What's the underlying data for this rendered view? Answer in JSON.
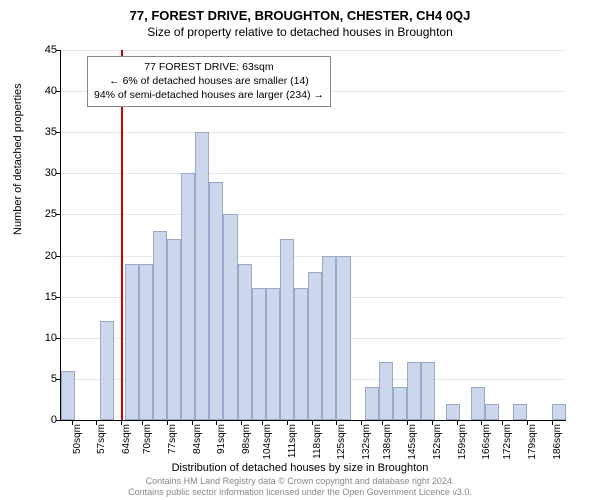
{
  "title_main": "77, FOREST DRIVE, BROUGHTON, CHESTER, CH4 0QJ",
  "title_sub": "Size of property relative to detached houses in Broughton",
  "y_axis_label": "Number of detached properties",
  "x_axis_label": "Distribution of detached houses by size in Broughton",
  "footer_line1": "Contains HM Land Registry data © Crown copyright and database right 2024.",
  "footer_line2": "Contains public sector information licensed under the Open Government Licence v3.0.",
  "chart": {
    "type": "histogram",
    "ylim": [
      0,
      45
    ],
    "ytick_step": 5,
    "bar_fill": "#cdd7ec",
    "bar_border": "#9aa8cc",
    "grid_color": "#e8e8e8",
    "ref_line_color": "#cc0000",
    "ref_line_x_category": "64sqm",
    "categories": [
      "50sqm",
      "57sqm",
      "64sqm",
      "70sqm",
      "77sqm",
      "84sqm",
      "91sqm",
      "98sqm",
      "104sqm",
      "111sqm",
      "118sqm",
      "125sqm",
      "132sqm",
      "138sqm",
      "145sqm",
      "152sqm",
      "159sqm",
      "166sqm",
      "172sqm",
      "179sqm",
      "186sqm"
    ],
    "tick_interval": 7,
    "bin_start": 47,
    "bar_data": [
      {
        "start": 47,
        "count": 6
      },
      {
        "start": 54,
        "count": 0
      },
      {
        "start": 58,
        "count": 12
      },
      {
        "start": 65,
        "count": 19
      },
      {
        "start": 69,
        "count": 19
      },
      {
        "start": 73,
        "count": 23
      },
      {
        "start": 77,
        "count": 22
      },
      {
        "start": 81,
        "count": 30
      },
      {
        "start": 85,
        "count": 35
      },
      {
        "start": 89,
        "count": 29
      },
      {
        "start": 93,
        "count": 25
      },
      {
        "start": 97,
        "count": 19
      },
      {
        "start": 101,
        "count": 16
      },
      {
        "start": 105,
        "count": 16
      },
      {
        "start": 109,
        "count": 22
      },
      {
        "start": 113,
        "count": 16
      },
      {
        "start": 117,
        "count": 18
      },
      {
        "start": 121,
        "count": 20
      },
      {
        "start": 125,
        "count": 20
      },
      {
        "start": 129,
        "count": 0
      },
      {
        "start": 133,
        "count": 4
      },
      {
        "start": 137,
        "count": 7
      },
      {
        "start": 141,
        "count": 4
      },
      {
        "start": 145,
        "count": 7
      },
      {
        "start": 149,
        "count": 7
      },
      {
        "start": 156,
        "count": 2
      },
      {
        "start": 163,
        "count": 4
      },
      {
        "start": 167,
        "count": 2
      },
      {
        "start": 175,
        "count": 2
      },
      {
        "start": 186,
        "count": 2
      }
    ],
    "x_data_min": 47,
    "x_data_max": 190,
    "bar_width_units": 4
  },
  "annotation": {
    "line1": "77 FOREST DRIVE: 63sqm",
    "line2": "← 6% of detached houses are smaller (14)",
    "line3": "94% of semi-detached houses are larger (234) →"
  }
}
